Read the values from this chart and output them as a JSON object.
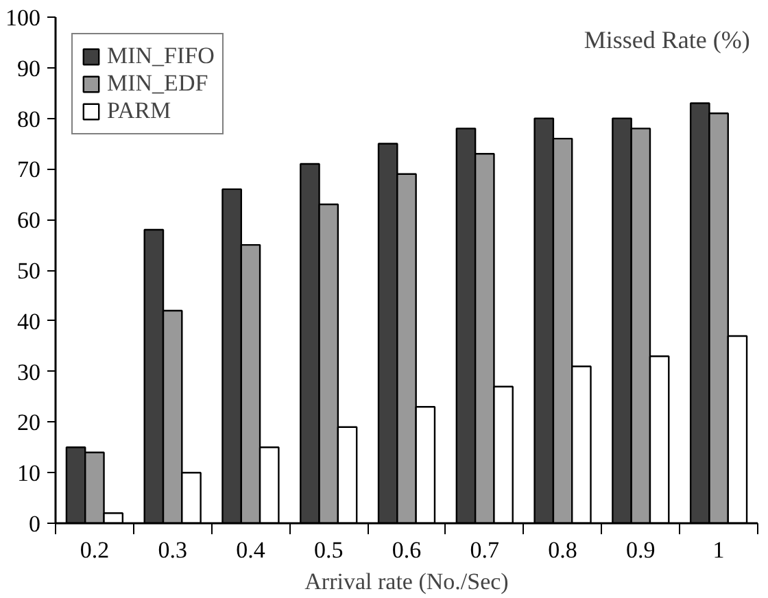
{
  "chart_data": {
    "type": "bar",
    "title": "Missed Rate (%)",
    "xlabel": "Arrival rate (No./Sec)",
    "categories": [
      "0.2",
      "0.3",
      "0.4",
      "0.5",
      "0.6",
      "0.7",
      "0.8",
      "0.9",
      "1"
    ],
    "series": [
      {
        "name": "MIN_FIFO",
        "color": "#404040",
        "values": [
          15,
          58,
          66,
          71,
          75,
          78,
          80,
          80,
          83
        ]
      },
      {
        "name": "MIN_EDF",
        "color": "#999999",
        "values": [
          14,
          42,
          55,
          63,
          69,
          73,
          76,
          78,
          81
        ]
      },
      {
        "name": "PARM",
        "color": "#ffffff",
        "values": [
          2,
          10,
          15,
          19,
          23,
          27,
          31,
          33,
          37
        ]
      }
    ],
    "ylim": [
      0,
      100
    ],
    "yticks": [
      0,
      10,
      20,
      30,
      40,
      50,
      60,
      70,
      80,
      90,
      100
    ],
    "grid": false,
    "legend": "top left"
  }
}
